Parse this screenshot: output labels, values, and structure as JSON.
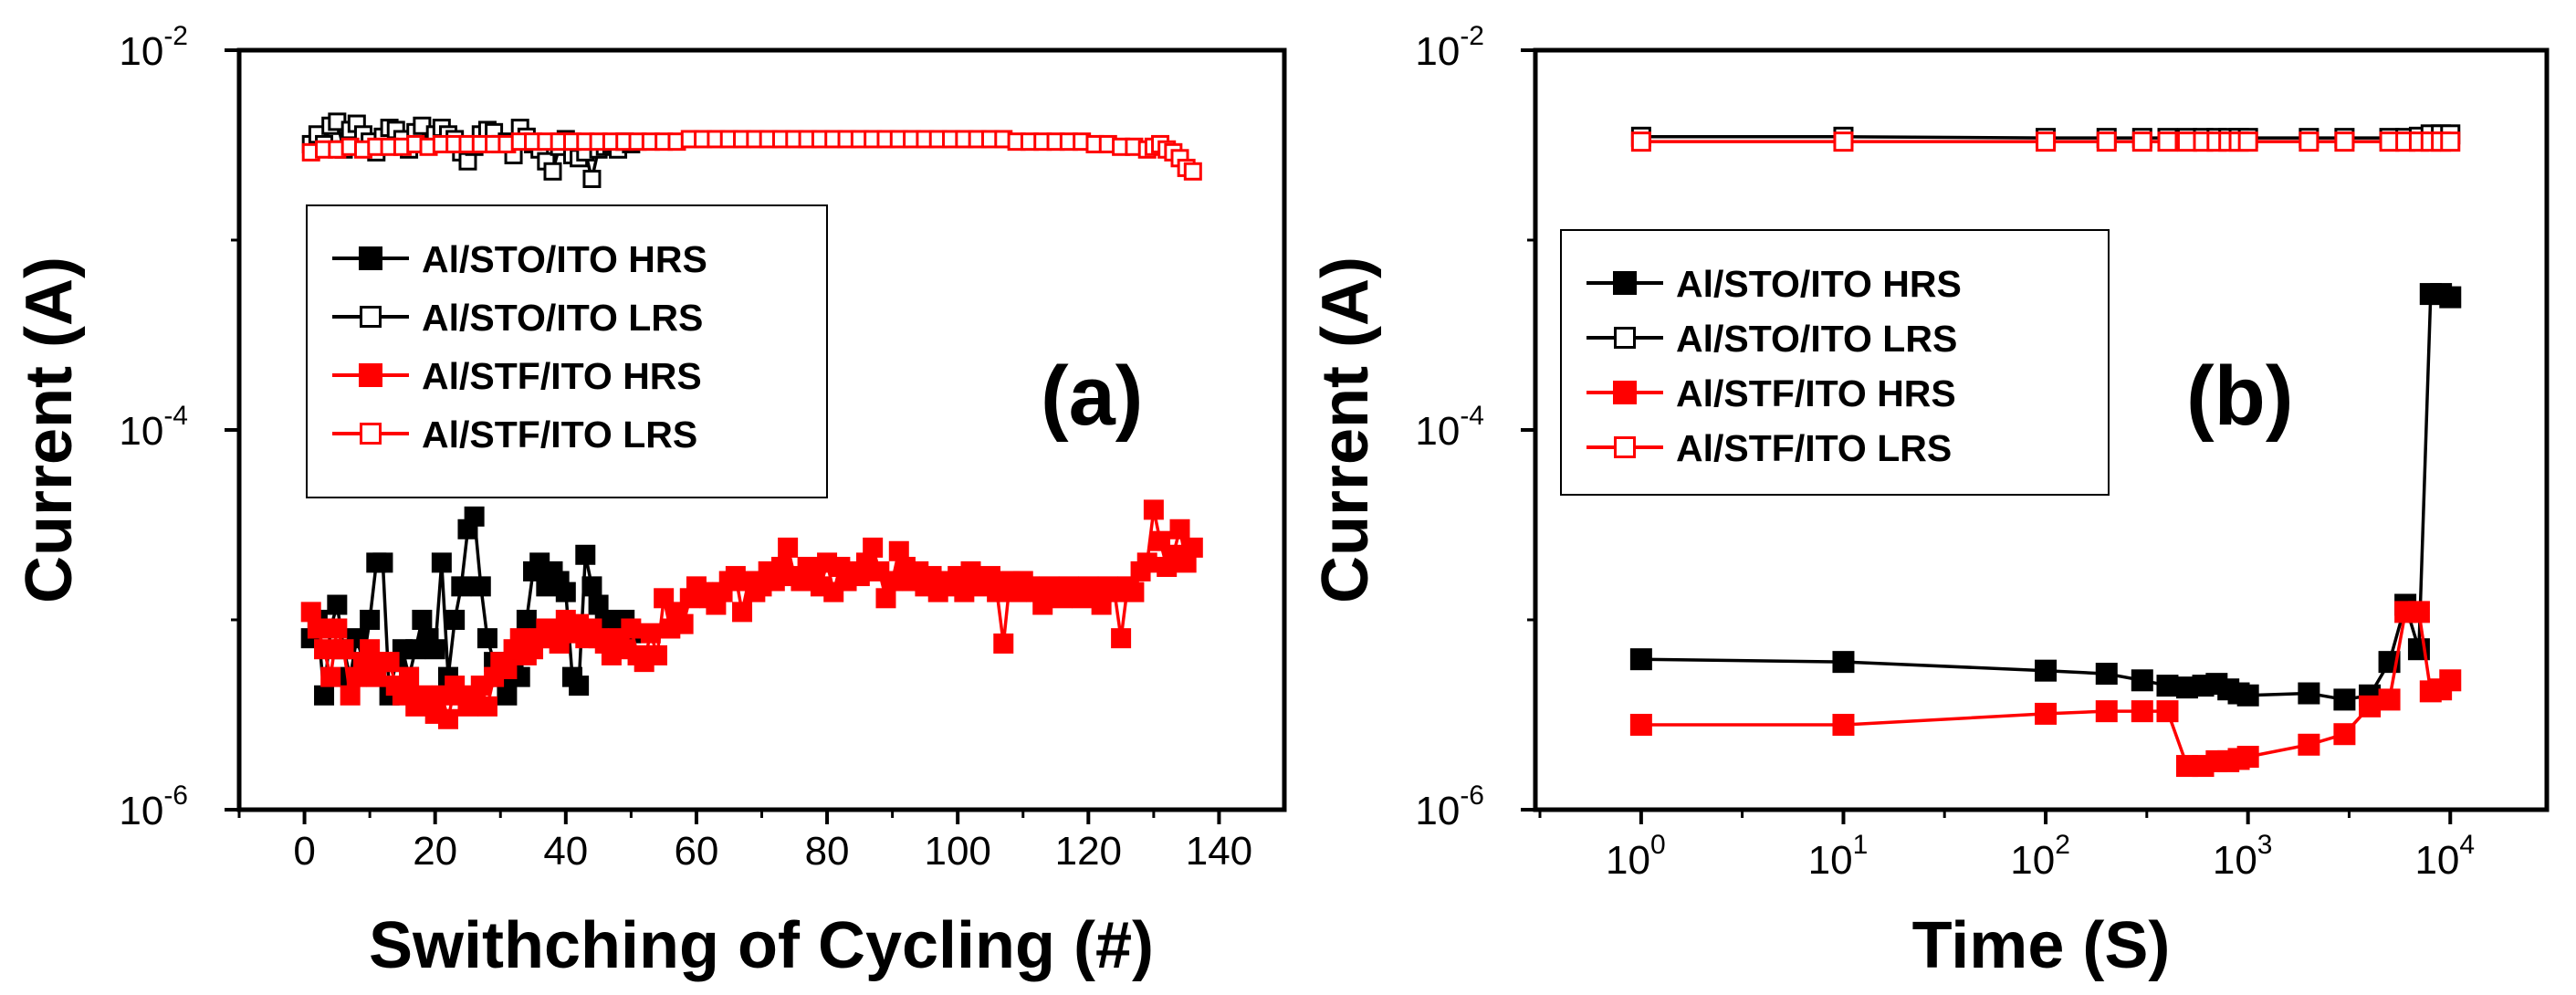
{
  "chart_data": [
    {
      "type": "scatter",
      "panel_label": "(a)",
      "xlabel": "Swithching of Cycling (#)",
      "ylabel": "Current (A)",
      "xscale": "linear",
      "yscale": "log",
      "xlim": [
        -10,
        150
      ],
      "ylim": [
        1e-06,
        0.01
      ],
      "xticks": [
        0,
        20,
        40,
        60,
        80,
        100,
        120,
        140
      ],
      "xtick_labels": [
        "0",
        "20",
        "40",
        "60",
        "80",
        "100",
        "120",
        "140"
      ],
      "yticks": [
        1e-06,
        0.0001,
        0.01
      ],
      "ytick_labels": [
        {
          "base": "10",
          "exp": "-6"
        },
        {
          "base": "10",
          "exp": "-4"
        },
        {
          "base": "10",
          "exp": "-2"
        }
      ],
      "legend_position": "left",
      "series": [
        {
          "name": "Al/STO/ITO HRS",
          "color": "#000000",
          "marker": "filled-square",
          "x": [
            1,
            2,
            3,
            4,
            5,
            6,
            7,
            8,
            9,
            10,
            11,
            12,
            13,
            14,
            15,
            16,
            17,
            18,
            19,
            20,
            21,
            22,
            23,
            24,
            25,
            26,
            27,
            28,
            29,
            30,
            31,
            32,
            33,
            34,
            35,
            36,
            37,
            38,
            39,
            40,
            41,
            42,
            43,
            44,
            45,
            46,
            47,
            48,
            49,
            50
          ],
          "y": [
            8e-06,
            1e-05,
            4e-06,
            9e-06,
            1.2e-05,
            7e-06,
            5e-06,
            8e-06,
            6e-06,
            1e-05,
            2e-05,
            2e-05,
            4e-06,
            6e-06,
            7e-06,
            5e-06,
            7e-06,
            1e-05,
            8e-06,
            7e-06,
            2e-05,
            5e-06,
            1e-05,
            1.5e-05,
            3e-05,
            3.5e-05,
            1.5e-05,
            8e-06,
            6e-06,
            5e-06,
            4e-06,
            6e-06,
            5e-06,
            1e-05,
            1.8e-05,
            2e-05,
            1.5e-05,
            1.8e-05,
            1.6e-05,
            1.4e-05,
            5e-06,
            4.5e-06,
            2.2e-05,
            1.5e-05,
            1.2e-05,
            1e-05,
            8e-06,
            9e-06,
            1e-05,
            8.5e-06
          ]
        },
        {
          "name": "Al/STO/ITO LRS",
          "color": "#000000",
          "marker": "open-square",
          "x": [
            1,
            2,
            3,
            4,
            5,
            6,
            7,
            8,
            9,
            10,
            11,
            12,
            13,
            14,
            15,
            16,
            17,
            18,
            19,
            20,
            21,
            22,
            23,
            24,
            25,
            26,
            27,
            28,
            29,
            30,
            31,
            32,
            33,
            34,
            35,
            36,
            37,
            38,
            39,
            40,
            41,
            42,
            43,
            44,
            45,
            46,
            47,
            48,
            49,
            50
          ],
          "y": [
            0.0032,
            0.0036,
            0.0032,
            0.004,
            0.0042,
            0.003,
            0.0038,
            0.0041,
            0.0036,
            0.0033,
            0.0029,
            0.0035,
            0.0039,
            0.0038,
            0.0034,
            0.003,
            0.0037,
            0.004,
            0.0032,
            0.0036,
            0.0039,
            0.0036,
            0.0034,
            0.0029,
            0.0026,
            0.0031,
            0.0036,
            0.0038,
            0.0037,
            0.0032,
            0.0033,
            0.0028,
            0.0039,
            0.0035,
            0.0032,
            0.003,
            0.0026,
            0.0023,
            0.0031,
            0.0034,
            0.0028,
            0.0027,
            0.0029,
            0.0021,
            0.003,
            0.0031,
            0.0032,
            0.003,
            0.0033,
            0.0032
          ]
        },
        {
          "name": "Al/STF/ITO HRS",
          "color": "#ff0000",
          "marker": "filled-square",
          "x": [
            1,
            2,
            3,
            4,
            5,
            6,
            7,
            8,
            9,
            10,
            11,
            12,
            13,
            14,
            15,
            16,
            17,
            18,
            19,
            20,
            21,
            22,
            23,
            24,
            25,
            26,
            27,
            28,
            29,
            30,
            31,
            32,
            33,
            34,
            35,
            36,
            37,
            38,
            39,
            40,
            41,
            42,
            43,
            44,
            45,
            46,
            47,
            48,
            49,
            50,
            51,
            52,
            53,
            54,
            55,
            56,
            57,
            58,
            59,
            60,
            61,
            62,
            63,
            64,
            65,
            66,
            67,
            68,
            69,
            70,
            71,
            72,
            73,
            74,
            75,
            76,
            77,
            78,
            79,
            80,
            81,
            82,
            83,
            84,
            85,
            86,
            87,
            88,
            89,
            90,
            91,
            92,
            93,
            94,
            95,
            96,
            97,
            98,
            99,
            100,
            101,
            102,
            103,
            104,
            105,
            106,
            107,
            108,
            109,
            110,
            111,
            112,
            113,
            114,
            115,
            116,
            117,
            118,
            119,
            120,
            121,
            122,
            123,
            124,
            125,
            126,
            127,
            128,
            129,
            130,
            131,
            132,
            133,
            134,
            135,
            136
          ],
          "y": [
            1.1e-05,
            9e-06,
            7e-06,
            5e-06,
            9e-06,
            7e-06,
            4e-06,
            5e-06,
            6e-06,
            7e-06,
            5e-06,
            6e-06,
            6e-06,
            4.5e-06,
            4e-06,
            5e-06,
            3.5e-06,
            4e-06,
            3.8e-06,
            3.2e-06,
            4e-06,
            3e-06,
            4.5e-06,
            4e-06,
            3.5e-06,
            3.8e-06,
            4.5e-06,
            3.5e-06,
            5e-06,
            6e-06,
            5.5e-06,
            7e-06,
            8e-06,
            6.5e-06,
            7e-06,
            8e-06,
            9e-06,
            8e-06,
            7.5e-06,
            1e-05,
            8.5e-06,
            9.5e-06,
            8e-06,
            9e-06,
            8e-06,
            7.5e-06,
            6.5e-06,
            8e-06,
            7e-06,
            9e-06,
            6.5e-06,
            6e-06,
            8.5e-06,
            6.5e-06,
            1.3e-05,
            9e-06,
            1.1e-05,
            9.5e-06,
            1.3e-05,
            1.5e-05,
            1.4e-05,
            1.3e-05,
            1.2e-05,
            1.4e-05,
            1.6e-05,
            1.7e-05,
            1.1e-05,
            1.6e-05,
            1.4e-05,
            1.5e-05,
            1.8e-05,
            1.6e-05,
            1.9e-05,
            2.4e-05,
            1.7e-05,
            1.6e-05,
            1.9e-05,
            1.8e-05,
            1.5e-05,
            2e-05,
            1.4e-05,
            1.9e-05,
            1.6e-05,
            1.8e-05,
            1.7e-05,
            2e-05,
            2.4e-05,
            1.8e-05,
            1.3e-05,
            1.6e-05,
            2.3e-05,
            1.9e-05,
            1.6e-05,
            1.8e-05,
            1.5e-05,
            1.7e-05,
            1.4e-05,
            1.6e-05,
            1.5e-05,
            1.7e-05,
            1.4e-05,
            1.8e-05,
            1.5e-05,
            1.6e-05,
            1.7e-05,
            1.4e-05,
            7.5e-06,
            1.6e-05,
            1.4e-05,
            1.6e-05,
            1.5e-05,
            1.4e-05,
            1.2e-05,
            1.5e-05,
            1.4e-05,
            1.3e-05,
            1.5e-05,
            1.4e-05,
            1.3e-05,
            1.5e-05,
            1.4e-05,
            1.2e-05,
            1.5e-05,
            1.4e-05,
            8e-06,
            1.5e-05,
            1.4e-05,
            1.8e-05,
            2e-05,
            3.8e-05,
            2.6e-05,
            1.9e-05,
            2.2e-05,
            3e-05,
            2e-05,
            2.4e-05
          ]
        },
        {
          "name": "Al/STF/ITO LRS",
          "color": "#ff0000",
          "marker": "open-square",
          "x": [
            1,
            3,
            5,
            7,
            9,
            11,
            13,
            15,
            17,
            19,
            21,
            23,
            25,
            27,
            29,
            31,
            33,
            35,
            37,
            39,
            41,
            43,
            45,
            47,
            49,
            51,
            53,
            55,
            57,
            59,
            61,
            63,
            65,
            67,
            69,
            71,
            73,
            75,
            77,
            79,
            81,
            83,
            85,
            87,
            89,
            91,
            93,
            95,
            97,
            99,
            101,
            103,
            105,
            107,
            109,
            111,
            113,
            115,
            117,
            119,
            121,
            123,
            125,
            127,
            129,
            130,
            131,
            132,
            133,
            134,
            135,
            136
          ],
          "y": [
            0.0029,
            0.003,
            0.003,
            0.0031,
            0.003,
            0.0031,
            0.0031,
            0.0031,
            0.0032,
            0.0031,
            0.0032,
            0.0032,
            0.0032,
            0.0032,
            0.0032,
            0.0032,
            0.0033,
            0.0033,
            0.0033,
            0.0033,
            0.0033,
            0.0033,
            0.0033,
            0.0033,
            0.0033,
            0.0033,
            0.0033,
            0.0033,
            0.0033,
            0.0034,
            0.0034,
            0.0034,
            0.0034,
            0.0034,
            0.0034,
            0.0034,
            0.0034,
            0.0034,
            0.0034,
            0.0034,
            0.0034,
            0.0034,
            0.0034,
            0.0034,
            0.0034,
            0.0034,
            0.0034,
            0.0034,
            0.0034,
            0.0034,
            0.0034,
            0.0034,
            0.0034,
            0.0034,
            0.0033,
            0.0033,
            0.0033,
            0.0033,
            0.0033,
            0.0033,
            0.0032,
            0.0032,
            0.0031,
            0.0031,
            0.003,
            0.0031,
            0.0032,
            0.003,
            0.0029,
            0.0027,
            0.0024,
            0.0023
          ]
        }
      ]
    },
    {
      "type": "line",
      "panel_label": "(b)",
      "xlabel": "Time (S)",
      "ylabel": "Current (A)",
      "xscale": "log",
      "yscale": "log",
      "xlim": [
        0.3,
        30000
      ],
      "ylim": [
        1e-06,
        0.01
      ],
      "xticks": [
        1,
        10,
        100,
        1000,
        10000
      ],
      "xtick_labels": [
        {
          "base": "10",
          "exp": "0"
        },
        {
          "base": "10",
          "exp": "1"
        },
        {
          "base": "10",
          "exp": "2"
        },
        {
          "base": "10",
          "exp": "3"
        },
        {
          "base": "10",
          "exp": "4"
        }
      ],
      "yticks": [
        1e-06,
        0.0001,
        0.01
      ],
      "ytick_labels": [
        {
          "base": "10",
          "exp": "-6"
        },
        {
          "base": "10",
          "exp": "-4"
        },
        {
          "base": "10",
          "exp": "-2"
        }
      ],
      "legend_position": "left",
      "series": [
        {
          "name": "Al/STO/ITO HRS",
          "color": "#000000",
          "marker": "filled-square",
          "x": [
            1,
            10,
            100,
            200,
            300,
            400,
            500,
            600,
            700,
            800,
            900,
            1000,
            2000,
            3000,
            4000,
            5000,
            6000,
            7000,
            8000,
            9000,
            10000
          ],
          "y": [
            6.2e-06,
            6e-06,
            5.4e-06,
            5.2e-06,
            4.8e-06,
            4.5e-06,
            4.4e-06,
            4.5e-06,
            4.6e-06,
            4.3e-06,
            4.1e-06,
            4e-06,
            4.1e-06,
            3.8e-06,
            4e-06,
            6e-06,
            1.2e-05,
            7e-06,
            0.00052,
            0.00052,
            0.0005
          ]
        },
        {
          "name": "Al/STO/ITO LRS",
          "color": "#000000",
          "marker": "open-square",
          "x": [
            1,
            10,
            100,
            200,
            300,
            400,
            500,
            600,
            700,
            800,
            900,
            1000,
            2000,
            3000,
            5000,
            6000,
            7000,
            8000,
            9000,
            10000
          ],
          "y": [
            0.0035,
            0.0035,
            0.00345,
            0.00345,
            0.00345,
            0.00345,
            0.00345,
            0.00345,
            0.00345,
            0.00345,
            0.00345,
            0.00345,
            0.00345,
            0.00345,
            0.00345,
            0.00345,
            0.0035,
            0.0036,
            0.0036,
            0.0036
          ]
        },
        {
          "name": "Al/STF/ITO HRS",
          "color": "#ff0000",
          "marker": "filled-square",
          "x": [
            1,
            10,
            100,
            200,
            300,
            400,
            500,
            600,
            700,
            800,
            900,
            1000,
            2000,
            3000,
            4000,
            5000,
            6000,
            7000,
            8000,
            9000,
            10000
          ],
          "y": [
            2.8e-06,
            2.8e-06,
            3.2e-06,
            3.3e-06,
            3.3e-06,
            3.3e-06,
            1.7e-06,
            1.7e-06,
            1.8e-06,
            1.8e-06,
            1.85e-06,
            1.9e-06,
            2.2e-06,
            2.5e-06,
            3.5e-06,
            3.8e-06,
            1.1e-05,
            1.1e-05,
            4.2e-06,
            4.3e-06,
            4.8e-06
          ]
        },
        {
          "name": "Al/STF/ITO LRS",
          "color": "#ff0000",
          "marker": "open-square",
          "x": [
            1,
            10,
            100,
            200,
            300,
            400,
            500,
            600,
            700,
            800,
            900,
            1000,
            2000,
            3000,
            5000,
            6000,
            7000,
            8000,
            9000,
            10000
          ],
          "y": [
            0.0033,
            0.0033,
            0.0033,
            0.0033,
            0.0033,
            0.0033,
            0.0033,
            0.0033,
            0.0033,
            0.0033,
            0.0033,
            0.0033,
            0.0033,
            0.0033,
            0.0033,
            0.0033,
            0.0033,
            0.0033,
            0.0033,
            0.0033
          ]
        }
      ]
    }
  ]
}
